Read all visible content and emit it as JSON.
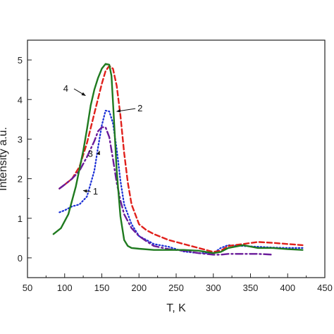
{
  "chart_data": {
    "type": "line",
    "xlabel": "T, K",
    "ylabel": "Intensity a.u.",
    "xlim": [
      50,
      450
    ],
    "ylim": [
      -0.5,
      5.5
    ],
    "x_ticks": [
      50,
      100,
      150,
      200,
      250,
      300,
      350,
      400,
      450
    ],
    "y_ticks": [
      0,
      1,
      2,
      3,
      4,
      5
    ],
    "grid": false,
    "series": [
      {
        "name": "1",
        "color": "#1a2fd6",
        "dash": "dotted",
        "x": [
          93,
          100,
          110,
          120,
          130,
          140,
          145,
          150,
          155,
          160,
          165,
          170,
          175,
          180,
          190,
          200,
          210,
          220,
          240,
          260,
          280,
          300,
          310,
          320,
          340,
          360,
          380,
          400,
          420
        ],
        "y": [
          1.15,
          1.2,
          1.3,
          1.35,
          1.55,
          2.2,
          2.8,
          3.35,
          3.72,
          3.7,
          3.4,
          2.75,
          1.95,
          1.35,
          0.85,
          0.55,
          0.45,
          0.35,
          0.28,
          0.16,
          0.12,
          0.12,
          0.25,
          0.32,
          0.3,
          0.28,
          0.26,
          0.25,
          0.25
        ]
      },
      {
        "name": "2",
        "color": "#e0201b",
        "dash": "dashed",
        "x": [
          93,
          100,
          110,
          120,
          130,
          140,
          150,
          155,
          160,
          165,
          170,
          175,
          180,
          185,
          190,
          200,
          210,
          220,
          240,
          260,
          280,
          300,
          310,
          320,
          340,
          360,
          380,
          400,
          420
        ],
        "y": [
          1.75,
          1.85,
          2.0,
          2.3,
          2.9,
          3.65,
          4.4,
          4.72,
          4.85,
          4.78,
          4.35,
          3.6,
          2.65,
          1.9,
          1.35,
          0.85,
          0.7,
          0.6,
          0.45,
          0.35,
          0.25,
          0.15,
          0.18,
          0.3,
          0.35,
          0.4,
          0.38,
          0.35,
          0.32
        ]
      },
      {
        "name": "3",
        "color": "#6a1b9a",
        "dash": "dashdot",
        "x": [
          93,
          100,
          110,
          120,
          130,
          140,
          145,
          150,
          155,
          160,
          165,
          170,
          175,
          180,
          190,
          200,
          210,
          220,
          240,
          260,
          280,
          300,
          310,
          320,
          340,
          360,
          380
        ],
        "y": [
          1.75,
          1.85,
          2.0,
          2.2,
          2.55,
          2.95,
          3.2,
          3.3,
          3.3,
          3.05,
          2.5,
          1.9,
          1.45,
          1.1,
          0.75,
          0.55,
          0.42,
          0.3,
          0.22,
          0.18,
          0.12,
          0.08,
          0.08,
          0.1,
          0.1,
          0.1,
          0.08
        ]
      },
      {
        "name": "4",
        "color": "#1f7a1f",
        "dash": "solid",
        "x": [
          85,
          95,
          105,
          115,
          125,
          130,
          135,
          140,
          145,
          150,
          155,
          160,
          163,
          166,
          170,
          175,
          180,
          185,
          190,
          200,
          220,
          240,
          260,
          280,
          300,
          310,
          320,
          340,
          360,
          380,
          400,
          420
        ],
        "y": [
          0.6,
          0.75,
          1.1,
          1.8,
          2.7,
          3.25,
          3.85,
          4.25,
          4.55,
          4.78,
          4.9,
          4.88,
          4.6,
          3.6,
          2.2,
          1.05,
          0.45,
          0.3,
          0.25,
          0.23,
          0.2,
          0.2,
          0.2,
          0.18,
          0.12,
          0.15,
          0.25,
          0.32,
          0.25,
          0.25,
          0.22,
          0.2
        ]
      }
    ],
    "annotations": [
      {
        "text": "1",
        "arrow_to": [
          125,
          1.7
        ],
        "text_at": [
          138,
          1.6
        ]
      },
      {
        "text": "2",
        "arrow_to": [
          170,
          3.7
        ],
        "text_at": [
          198,
          3.7
        ]
      },
      {
        "text": "3",
        "arrow_to": [
          147,
          2.7
        ],
        "text_at": [
          138,
          2.55
        ]
      },
      {
        "text": "4",
        "arrow_to": [
          128,
          4.1
        ],
        "text_at": [
          105,
          4.2
        ]
      }
    ]
  }
}
